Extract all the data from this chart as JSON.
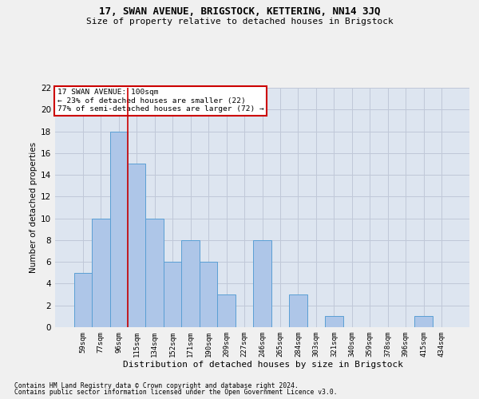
{
  "title1": "17, SWAN AVENUE, BRIGSTOCK, KETTERING, NN14 3JQ",
  "title2": "Size of property relative to detached houses in Brigstock",
  "xlabel": "Distribution of detached houses by size in Brigstock",
  "ylabel": "Number of detached properties",
  "footnote1": "Contains HM Land Registry data © Crown copyright and database right 2024.",
  "footnote2": "Contains public sector information licensed under the Open Government Licence v3.0.",
  "categories": [
    "59sqm",
    "77sqm",
    "96sqm",
    "115sqm",
    "134sqm",
    "152sqm",
    "171sqm",
    "190sqm",
    "209sqm",
    "227sqm",
    "246sqm",
    "265sqm",
    "284sqm",
    "303sqm",
    "321sqm",
    "340sqm",
    "359sqm",
    "378sqm",
    "396sqm",
    "415sqm",
    "434sqm"
  ],
  "values": [
    5,
    10,
    18,
    15,
    10,
    6,
    8,
    6,
    3,
    0,
    8,
    0,
    3,
    0,
    1,
    0,
    0,
    0,
    0,
    1,
    0
  ],
  "bar_color": "#aec6e8",
  "bar_edge_color": "#5a9fd4",
  "property_line_x": 2.5,
  "annotation_text1": "17 SWAN AVENUE: 100sqm",
  "annotation_text2": "← 23% of detached houses are smaller (22)",
  "annotation_text3": "77% of semi-detached houses are larger (72) →",
  "annotation_box_color": "#ffffff",
  "annotation_border_color": "#cc0000",
  "red_line_color": "#cc0000",
  "ylim": [
    0,
    22
  ],
  "yticks": [
    0,
    2,
    4,
    6,
    8,
    10,
    12,
    14,
    16,
    18,
    20,
    22
  ],
  "grid_color": "#c0c8d8",
  "background_color": "#dde5f0",
  "fig_background": "#f0f0f0"
}
